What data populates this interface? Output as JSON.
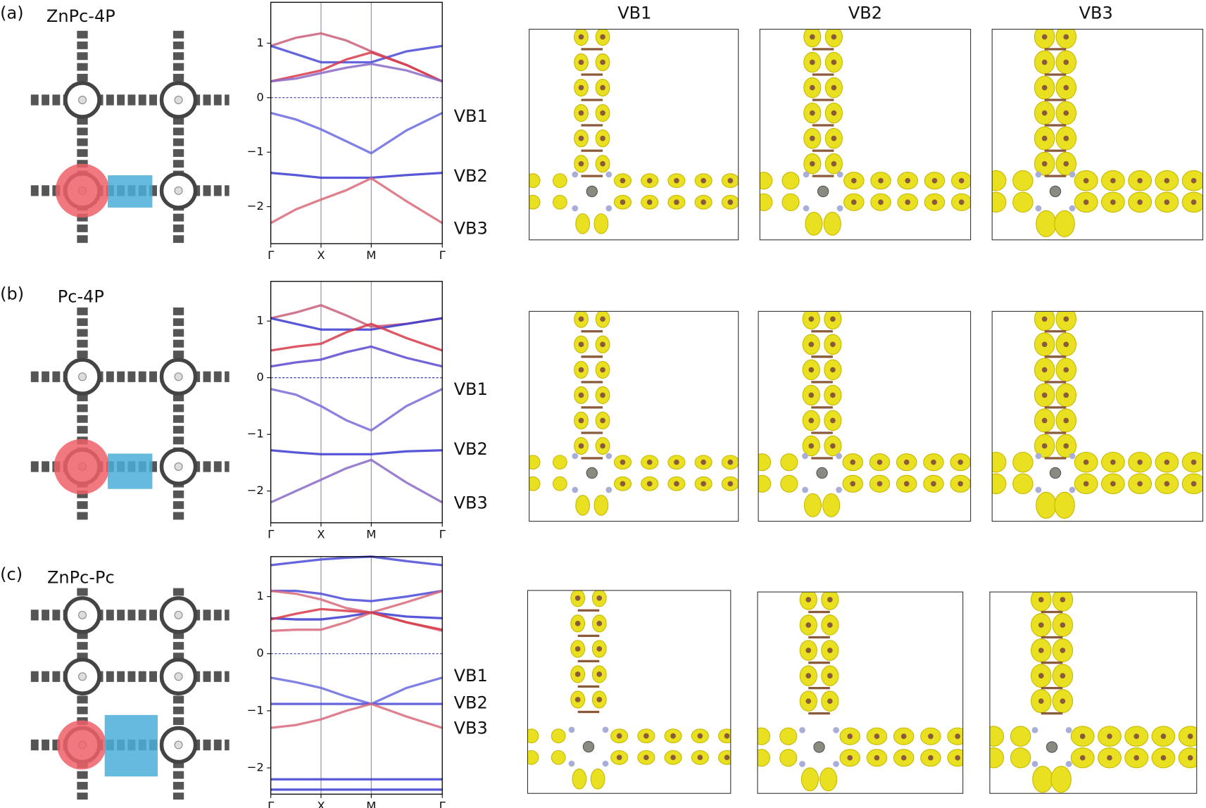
{
  "column_headers": [
    "VB1",
    "VB2",
    "VB3"
  ],
  "panels": [
    {
      "label": "(a)",
      "title": "ZnPc-4P",
      "vb_labels": [
        "VB1",
        "VB2",
        "VB3"
      ]
    },
    {
      "label": "(b)",
      "title": "Pc-4P",
      "vb_labels": [
        "VB1",
        "VB2",
        "VB3"
      ]
    },
    {
      "label": "(c)",
      "title": "ZnPc-Pc",
      "vb_labels": [
        "VB1",
        "VB2",
        "VB3"
      ]
    }
  ],
  "chart_data": [
    {
      "type": "line",
      "x": [
        0,
        0.5,
        1,
        1.5,
        2,
        2.7,
        3.414
      ],
      "xlim": [
        0,
        3.414
      ],
      "xticks": [
        {
          "value": 0,
          "label": "Γ"
        },
        {
          "value": 1,
          "label": "X"
        },
        {
          "value": 2,
          "label": "M"
        },
        {
          "value": 3.414,
          "label": "Γ"
        }
      ],
      "ylim": [
        -2.68,
        1.75
      ],
      "yticks": [
        {
          "value": -2,
          "label": "−2"
        },
        {
          "value": -1,
          "label": "−1"
        },
        0,
        1
      ],
      "series": [
        {
          "color": "#c9607a",
          "values": [
            0.95,
            1.1,
            1.18,
            1.05,
            0.85,
            0.6,
            0.3
          ]
        },
        {
          "color": "#4a4ad8",
          "values": [
            0.95,
            0.8,
            0.65,
            0.65,
            0.65,
            0.85,
            0.95
          ]
        },
        {
          "color": "#d83a4a",
          "values": [
            0.3,
            0.4,
            0.5,
            0.7,
            0.83,
            0.6,
            0.3
          ]
        },
        {
          "color": "#8a6ac8",
          "values": [
            0.3,
            0.35,
            0.45,
            0.55,
            0.62,
            0.5,
            0.3
          ]
        },
        {
          "color": "#6a6ae0",
          "values": [
            -0.28,
            -0.4,
            -0.58,
            -0.8,
            -1.02,
            -0.6,
            -0.28
          ]
        },
        {
          "color": "#3a3ad0",
          "values": [
            -1.38,
            -1.42,
            -1.47,
            -1.47,
            -1.47,
            -1.42,
            -1.38
          ]
        },
        {
          "color": "#d86a7a",
          "values": [
            -2.3,
            -2.05,
            -1.87,
            -1.7,
            -1.48,
            -1.9,
            -2.3
          ]
        }
      ]
    },
    {
      "type": "line",
      "x": [
        0,
        0.5,
        1,
        1.5,
        2,
        2.7,
        3.414
      ],
      "xlim": [
        0,
        3.414
      ],
      "xticks": [
        {
          "value": 0,
          "label": "Γ"
        },
        {
          "value": 1,
          "label": "X"
        },
        {
          "value": 2,
          "label": "M"
        },
        {
          "value": 3.414,
          "label": "Γ"
        }
      ],
      "ylim": [
        -2.56,
        1.7
      ],
      "yticks": [
        {
          "value": -2,
          "label": "−2"
        },
        {
          "value": -1,
          "label": "−1"
        },
        0,
        1
      ],
      "series": [
        {
          "color": "#c9607a",
          "values": [
            1.05,
            1.15,
            1.28,
            1.1,
            0.9,
            0.95,
            1.05
          ]
        },
        {
          "color": "#3a3ad0",
          "values": [
            1.05,
            0.95,
            0.85,
            0.85,
            0.85,
            0.95,
            1.05
          ]
        },
        {
          "color": "#d83a4a",
          "values": [
            0.48,
            0.55,
            0.6,
            0.8,
            0.95,
            0.7,
            0.48
          ]
        },
        {
          "color": "#5a4ad0",
          "values": [
            0.2,
            0.27,
            0.32,
            0.45,
            0.55,
            0.35,
            0.2
          ]
        },
        {
          "color": "#7a6ad8",
          "values": [
            -0.2,
            -0.3,
            -0.5,
            -0.75,
            -0.93,
            -0.5,
            -0.2
          ]
        },
        {
          "color": "#3a3ad0",
          "values": [
            -1.28,
            -1.32,
            -1.35,
            -1.35,
            -1.35,
            -1.3,
            -1.28
          ]
        },
        {
          "color": "#8a6ac8",
          "values": [
            -2.2,
            -2.0,
            -1.8,
            -1.6,
            -1.45,
            -1.85,
            -2.2
          ]
        }
      ]
    },
    {
      "type": "line",
      "x": [
        0,
        0.5,
        1,
        1.5,
        2,
        2.7,
        3.414
      ],
      "xlim": [
        0,
        3.414
      ],
      "xticks": [
        {
          "value": 0,
          "label": "Γ"
        },
        {
          "value": 1,
          "label": "X"
        },
        {
          "value": 2,
          "label": "M"
        },
        {
          "value": 3.414,
          "label": "Γ"
        }
      ],
      "ylim": [
        -2.46,
        1.7
      ],
      "yticks": [
        {
          "value": -2,
          "label": "−2"
        },
        {
          "value": -1,
          "label": "−1"
        },
        0,
        1
      ],
      "series": [
        {
          "color": "#4a4ad8",
          "values": [
            1.55,
            1.6,
            1.65,
            1.68,
            1.7,
            1.62,
            1.55
          ]
        },
        {
          "color": "#4a4ad8",
          "values": [
            1.1,
            1.1,
            1.05,
            0.95,
            0.92,
            1.0,
            1.1
          ]
        },
        {
          "color": "#d86a7a",
          "values": [
            1.1,
            1.05,
            0.95,
            0.8,
            0.72,
            0.9,
            1.1
          ]
        },
        {
          "color": "#3a3ad0",
          "values": [
            0.62,
            0.6,
            0.6,
            0.65,
            0.72,
            0.65,
            0.62
          ]
        },
        {
          "color": "#d86a7a",
          "values": [
            0.4,
            0.42,
            0.42,
            0.55,
            0.72,
            0.55,
            0.4
          ]
        },
        {
          "color": "#d83a4a",
          "values": [
            0.6,
            0.7,
            0.78,
            0.75,
            0.72,
            0.55,
            0.42
          ]
        },
        {
          "color": "#6a6ae0",
          "values": [
            -0.42,
            -0.5,
            -0.6,
            -0.75,
            -0.88,
            -0.6,
            -0.42
          ]
        },
        {
          "color": "#4a4ad8",
          "values": [
            -0.88,
            -0.88,
            -0.88,
            -0.88,
            -0.88,
            -0.88,
            -0.88
          ]
        },
        {
          "color": "#d86a7a",
          "values": [
            -1.3,
            -1.25,
            -1.15,
            -1.0,
            -0.88,
            -1.1,
            -1.3
          ]
        },
        {
          "color": "#3a3ad0",
          "values": [
            -2.2,
            -2.2,
            -2.2,
            -2.2,
            -2.2,
            -2.2,
            -2.2
          ]
        },
        {
          "color": "#3a3ad0",
          "values": [
            -2.38,
            -2.38,
            -2.38,
            -2.38,
            -2.38,
            -2.38,
            -2.38
          ]
        }
      ]
    }
  ]
}
